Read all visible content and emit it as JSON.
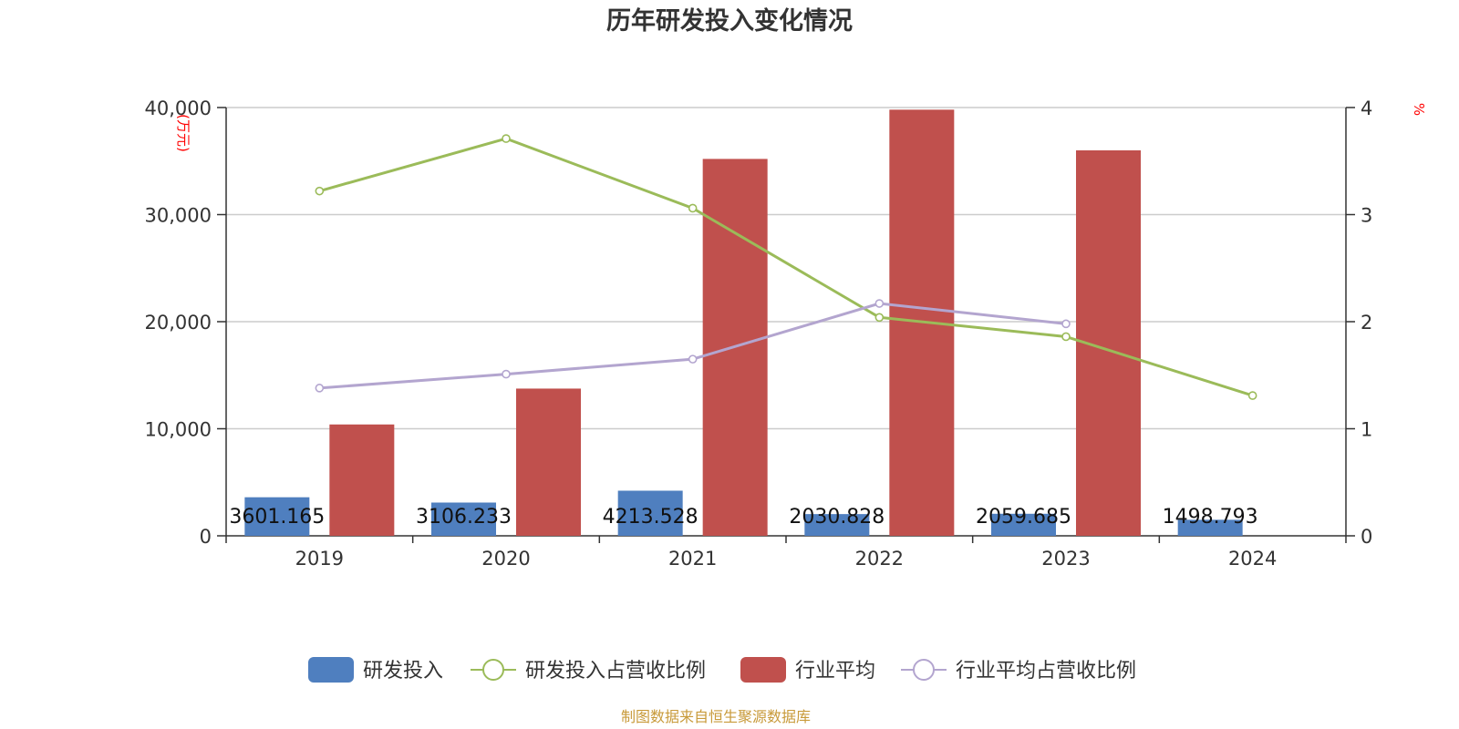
{
  "chart_data": {
    "type": "bar",
    "title": "历年研发投入变化情况",
    "categories": [
      "2019",
      "2020",
      "2021",
      "2022",
      "2023",
      "2024"
    ],
    "y_left": {
      "unit_label": "(万元)",
      "ylim": [
        0,
        40000
      ],
      "ticks": [
        "0",
        "10,000",
        "20,000",
        "30,000",
        "40,000"
      ],
      "tick_values": [
        0,
        10000,
        20000,
        30000,
        40000
      ]
    },
    "y_right": {
      "unit_label": "%",
      "ylim": [
        0,
        4
      ],
      "ticks": [
        "0",
        "1",
        "2",
        "3",
        "4"
      ],
      "tick_values": [
        0,
        1,
        2,
        3,
        4
      ]
    },
    "grid": true,
    "legend_position": "bottom-center",
    "series": [
      {
        "name": "研发投入",
        "type": "bar",
        "axis": "left",
        "color": "#4f7fbf",
        "values": [
          3601.165,
          3106.233,
          4213.528,
          2030.828,
          2059.685,
          1498.793
        ],
        "labels": [
          "3601.165",
          "3106.233",
          "4213.528",
          "2030.828",
          "2059.685",
          "1498.793"
        ]
      },
      {
        "name": "研发投入占营收比例",
        "type": "line",
        "axis": "right",
        "color": "#9bbb59",
        "values": [
          3.22,
          3.71,
          3.06,
          2.04,
          1.86,
          1.31
        ]
      },
      {
        "name": "行业平均",
        "type": "bar",
        "axis": "left",
        "color": "#c0504d",
        "values": [
          10400,
          13750,
          35200,
          39800,
          36000,
          null
        ]
      },
      {
        "name": "行业平均占营收比例",
        "type": "line",
        "axis": "right",
        "color": "#b3a5cf",
        "values": [
          1.38,
          1.51,
          1.65,
          2.17,
          1.98,
          null
        ]
      }
    ],
    "source": "制图数据来自恒生聚源数据库"
  }
}
